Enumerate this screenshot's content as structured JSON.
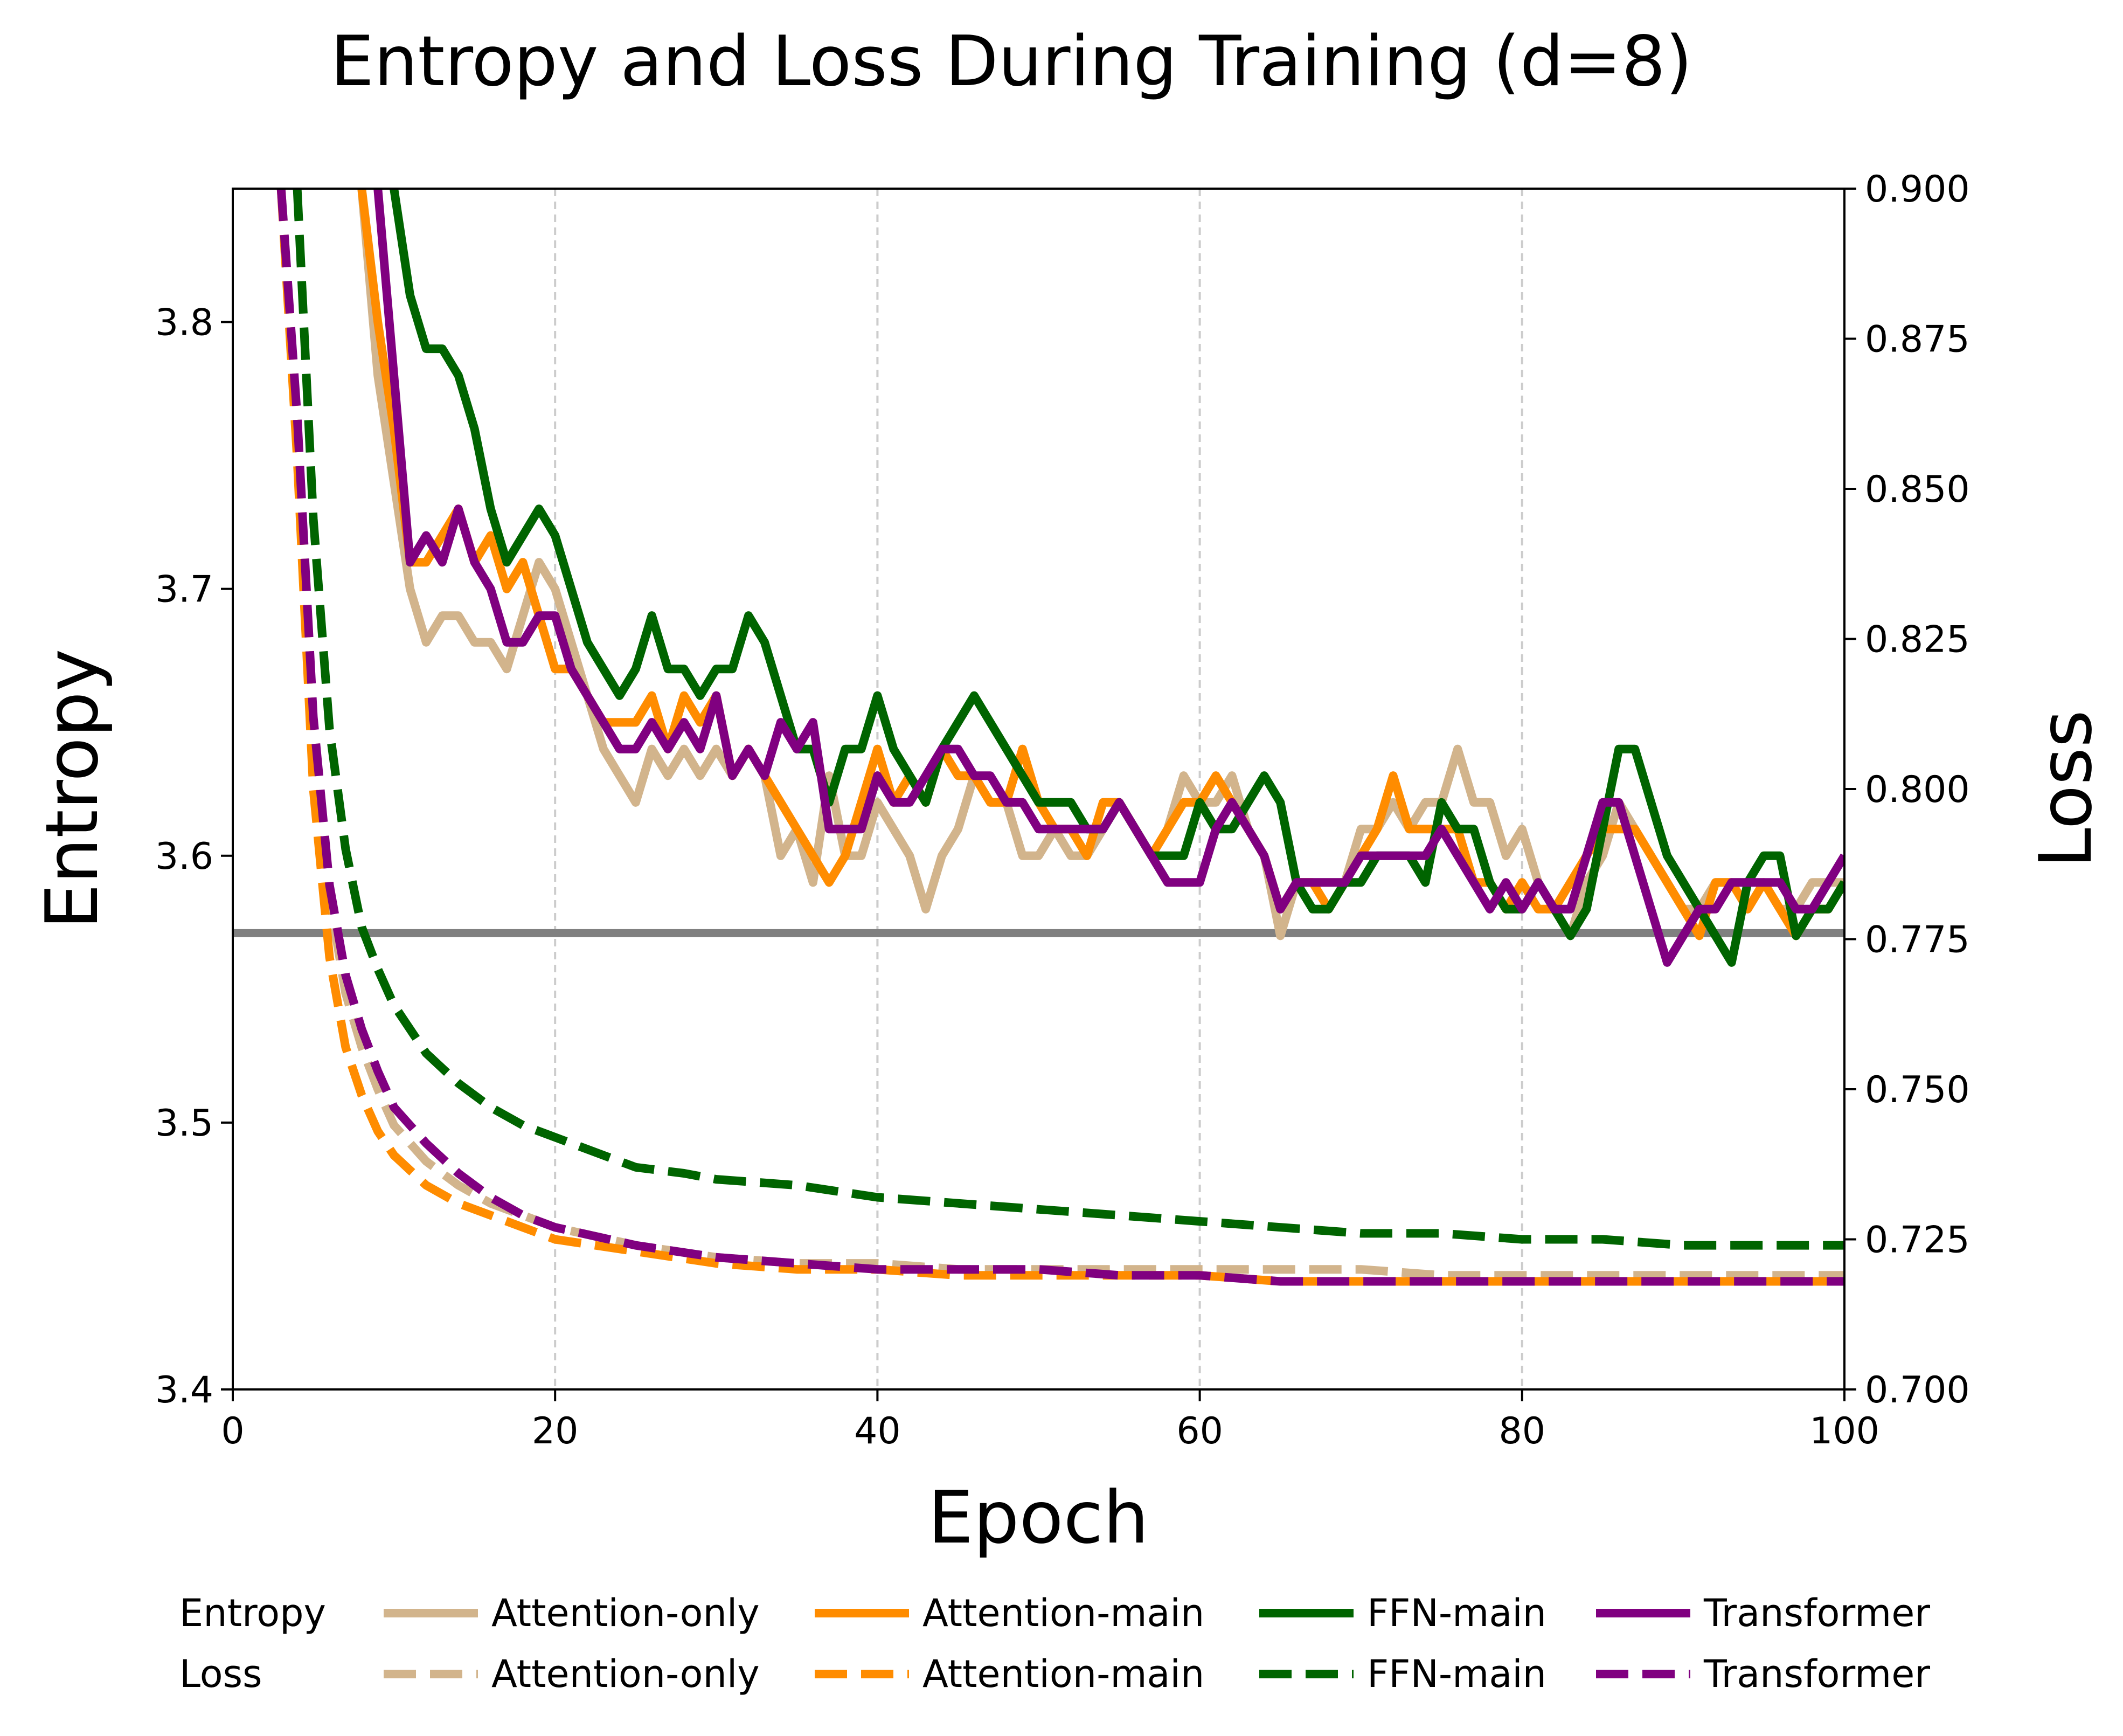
{
  "chart_data": {
    "type": "line",
    "title": "Entropy and Loss During Training (d=8)",
    "xlabel": "Epoch",
    "ylabel_left": "Entropy",
    "ylabel_right": "Loss",
    "xlim": [
      0,
      100
    ],
    "ylim_left": [
      3.4,
      3.85
    ],
    "ylim_right": [
      0.7,
      0.9
    ],
    "x_ticks": [
      0,
      20,
      40,
      60,
      80,
      100
    ],
    "x_tick_labels": [
      "0",
      "20",
      "40",
      "60",
      "80",
      "100"
    ],
    "y_left_ticks": [
      3.4,
      3.5,
      3.6,
      3.7,
      3.8
    ],
    "y_left_tick_labels": [
      "3.4",
      "3.5",
      "3.6",
      "3.7",
      "3.8"
    ],
    "y_right_ticks": [
      0.7,
      0.725,
      0.75,
      0.775,
      0.8,
      0.825,
      0.85,
      0.875,
      0.9
    ],
    "y_right_tick_labels": [
      "0.700",
      "0.725",
      "0.750",
      "0.775",
      "0.800",
      "0.825",
      "0.850",
      "0.875",
      "0.900"
    ],
    "x_grid": "vertical dashed",
    "reference_line": {
      "axis": "left",
      "value": 3.571,
      "color": "#808080"
    },
    "legend": {
      "placement": "bottom",
      "row_labels": [
        "Entropy",
        "Loss"
      ],
      "entropy_entries": [
        "Attention-only",
        "Attention-main",
        "FFN-main",
        "Transformer"
      ],
      "loss_entries": [
        "Attention-only",
        "Attention-main",
        "FFN-main",
        "Transformer"
      ]
    },
    "series": [
      {
        "name": "Attention-only",
        "metric": "Entropy",
        "axis": "left",
        "color": "#D2B48C",
        "style": "solid",
        "x": [
          8,
          9,
          10,
          11,
          12,
          13,
          14,
          15,
          16,
          17,
          18,
          19,
          20,
          21,
          22,
          23,
          24,
          25,
          26,
          27,
          28,
          29,
          30,
          31,
          32,
          33,
          34,
          35,
          36,
          37,
          38,
          39,
          40,
          41,
          42,
          43,
          44,
          45,
          46,
          47,
          48,
          49,
          50,
          51,
          52,
          53,
          54,
          55,
          56,
          57,
          58,
          59,
          60,
          61,
          62,
          63,
          64,
          65,
          66,
          67,
          68,
          69,
          70,
          71,
          72,
          73,
          74,
          75,
          76,
          77,
          78,
          79,
          80,
          81,
          82,
          83,
          84,
          85,
          86,
          87,
          88,
          89,
          90,
          91,
          92,
          93,
          94,
          95,
          96,
          97,
          98,
          99,
          100
        ],
        "y": [
          3.85,
          3.78,
          3.74,
          3.7,
          3.68,
          3.69,
          3.69,
          3.68,
          3.68,
          3.67,
          3.69,
          3.71,
          3.7,
          3.68,
          3.66,
          3.64,
          3.63,
          3.62,
          3.64,
          3.63,
          3.64,
          3.63,
          3.64,
          3.63,
          3.64,
          3.63,
          3.6,
          3.61,
          3.59,
          3.63,
          3.6,
          3.6,
          3.62,
          3.61,
          3.6,
          3.58,
          3.6,
          3.61,
          3.63,
          3.62,
          3.62,
          3.6,
          3.6,
          3.61,
          3.6,
          3.6,
          3.61,
          3.62,
          3.61,
          3.6,
          3.61,
          3.63,
          3.62,
          3.62,
          3.63,
          3.61,
          3.6,
          3.57,
          3.59,
          3.59,
          3.59,
          3.59,
          3.61,
          3.61,
          3.62,
          3.61,
          3.62,
          3.62,
          3.64,
          3.62,
          3.62,
          3.6,
          3.61,
          3.59,
          3.58,
          3.57,
          3.59,
          3.6,
          3.62,
          3.61,
          3.6,
          3.59,
          3.58,
          3.58,
          3.59,
          3.59,
          3.59,
          3.59,
          3.58,
          3.58,
          3.59,
          3.59,
          3.59
        ]
      },
      {
        "name": "Attention-main",
        "metric": "Entropy",
        "axis": "left",
        "color": "#FF8C00",
        "style": "solid",
        "x": [
          8,
          9,
          10,
          11,
          12,
          13,
          14,
          15,
          16,
          17,
          18,
          19,
          20,
          21,
          22,
          23,
          24,
          25,
          26,
          27,
          28,
          29,
          30,
          31,
          32,
          33,
          34,
          35,
          36,
          37,
          38,
          39,
          40,
          41,
          42,
          43,
          44,
          45,
          46,
          47,
          48,
          49,
          50,
          51,
          52,
          53,
          54,
          55,
          56,
          57,
          58,
          59,
          60,
          61,
          62,
          63,
          64,
          65,
          66,
          67,
          68,
          69,
          70,
          71,
          72,
          73,
          74,
          75,
          76,
          77,
          78,
          79,
          80,
          81,
          82,
          83,
          84,
          85,
          86,
          87,
          88,
          89,
          90,
          91,
          92,
          93,
          94,
          95,
          96,
          97,
          98,
          99,
          100
        ],
        "y": [
          3.85,
          3.8,
          3.76,
          3.71,
          3.71,
          3.72,
          3.73,
          3.71,
          3.72,
          3.7,
          3.71,
          3.69,
          3.67,
          3.67,
          3.66,
          3.65,
          3.65,
          3.65,
          3.66,
          3.64,
          3.66,
          3.65,
          3.66,
          3.63,
          3.64,
          3.63,
          3.62,
          3.61,
          3.6,
          3.59,
          3.6,
          3.62,
          3.64,
          3.62,
          3.63,
          3.62,
          3.64,
          3.63,
          3.63,
          3.62,
          3.62,
          3.64,
          3.62,
          3.61,
          3.61,
          3.6,
          3.62,
          3.62,
          3.61,
          3.6,
          3.61,
          3.62,
          3.62,
          3.63,
          3.62,
          3.61,
          3.6,
          3.58,
          3.59,
          3.59,
          3.58,
          3.59,
          3.6,
          3.61,
          3.63,
          3.61,
          3.61,
          3.61,
          3.61,
          3.59,
          3.59,
          3.58,
          3.59,
          3.58,
          3.58,
          3.59,
          3.6,
          3.61,
          3.61,
          3.61,
          3.6,
          3.59,
          3.58,
          3.57,
          3.59,
          3.59,
          3.58,
          3.59,
          3.58,
          3.57,
          3.58,
          3.58,
          3.59
        ]
      },
      {
        "name": "FFN-main",
        "metric": "Entropy",
        "axis": "left",
        "color": "#006400",
        "style": "solid",
        "x": [
          10,
          11,
          12,
          13,
          14,
          15,
          16,
          17,
          18,
          19,
          20,
          21,
          22,
          23,
          24,
          25,
          26,
          27,
          28,
          29,
          30,
          31,
          32,
          33,
          34,
          35,
          36,
          37,
          38,
          39,
          40,
          41,
          42,
          43,
          44,
          45,
          46,
          47,
          48,
          49,
          50,
          51,
          52,
          53,
          54,
          55,
          56,
          57,
          58,
          59,
          60,
          61,
          62,
          63,
          64,
          65,
          66,
          67,
          68,
          69,
          70,
          71,
          72,
          73,
          74,
          75,
          76,
          77,
          78,
          79,
          80,
          81,
          82,
          83,
          84,
          85,
          86,
          87,
          88,
          89,
          90,
          91,
          92,
          93,
          94,
          95,
          96,
          97,
          98,
          99,
          100
        ],
        "y": [
          3.85,
          3.81,
          3.79,
          3.79,
          3.78,
          3.76,
          3.73,
          3.71,
          3.72,
          3.73,
          3.72,
          3.7,
          3.68,
          3.67,
          3.66,
          3.67,
          3.69,
          3.67,
          3.67,
          3.66,
          3.67,
          3.67,
          3.69,
          3.68,
          3.66,
          3.64,
          3.64,
          3.62,
          3.64,
          3.64,
          3.66,
          3.64,
          3.63,
          3.62,
          3.64,
          3.65,
          3.66,
          3.65,
          3.64,
          3.63,
          3.62,
          3.62,
          3.62,
          3.61,
          3.61,
          3.62,
          3.61,
          3.6,
          3.6,
          3.6,
          3.62,
          3.61,
          3.61,
          3.62,
          3.63,
          3.62,
          3.59,
          3.58,
          3.58,
          3.59,
          3.59,
          3.6,
          3.6,
          3.6,
          3.59,
          3.62,
          3.61,
          3.61,
          3.59,
          3.58,
          3.58,
          3.59,
          3.58,
          3.57,
          3.58,
          3.61,
          3.64,
          3.64,
          3.62,
          3.6,
          3.59,
          3.58,
          3.57,
          3.56,
          3.59,
          3.6,
          3.6,
          3.57,
          3.58,
          3.58,
          3.59
        ]
      },
      {
        "name": "Transformer",
        "metric": "Entropy",
        "axis": "left",
        "color": "#800080",
        "style": "solid",
        "x": [
          9,
          10,
          11,
          12,
          13,
          14,
          15,
          16,
          17,
          18,
          19,
          20,
          21,
          22,
          23,
          24,
          25,
          26,
          27,
          28,
          29,
          30,
          31,
          32,
          33,
          34,
          35,
          36,
          37,
          38,
          39,
          40,
          41,
          42,
          43,
          44,
          45,
          46,
          47,
          48,
          49,
          50,
          51,
          52,
          53,
          54,
          55,
          56,
          57,
          58,
          59,
          60,
          61,
          62,
          63,
          64,
          65,
          66,
          67,
          68,
          69,
          70,
          71,
          72,
          73,
          74,
          75,
          76,
          77,
          78,
          79,
          80,
          81,
          82,
          83,
          84,
          85,
          86,
          87,
          88,
          89,
          90,
          91,
          92,
          93,
          94,
          95,
          96,
          97,
          98,
          99,
          100
        ],
        "y": [
          3.85,
          3.78,
          3.71,
          3.72,
          3.71,
          3.73,
          3.71,
          3.7,
          3.68,
          3.68,
          3.69,
          3.69,
          3.67,
          3.66,
          3.65,
          3.64,
          3.64,
          3.65,
          3.64,
          3.65,
          3.64,
          3.66,
          3.63,
          3.64,
          3.63,
          3.65,
          3.64,
          3.65,
          3.61,
          3.61,
          3.61,
          3.63,
          3.62,
          3.62,
          3.63,
          3.64,
          3.64,
          3.63,
          3.63,
          3.62,
          3.62,
          3.61,
          3.61,
          3.61,
          3.61,
          3.61,
          3.62,
          3.61,
          3.6,
          3.59,
          3.59,
          3.59,
          3.61,
          3.62,
          3.61,
          3.6,
          3.58,
          3.59,
          3.59,
          3.59,
          3.59,
          3.6,
          3.6,
          3.6,
          3.6,
          3.6,
          3.61,
          3.6,
          3.59,
          3.58,
          3.59,
          3.58,
          3.59,
          3.58,
          3.58,
          3.6,
          3.62,
          3.62,
          3.6,
          3.58,
          3.56,
          3.57,
          3.58,
          3.58,
          3.59,
          3.59,
          3.59,
          3.59,
          3.58,
          3.58,
          3.59,
          3.6
        ]
      },
      {
        "name": "Attention-only",
        "metric": "Loss",
        "axis": "right",
        "color": "#D2B48C",
        "style": "dashed",
        "x": [
          3,
          4,
          5,
          6,
          7,
          8,
          9,
          10,
          12,
          14,
          16,
          18,
          20,
          25,
          30,
          35,
          40,
          45,
          50,
          55,
          60,
          65,
          70,
          75,
          80,
          85,
          90,
          95,
          100
        ],
        "y": [
          0.9,
          0.86,
          0.81,
          0.782,
          0.766,
          0.757,
          0.75,
          0.744,
          0.738,
          0.734,
          0.731,
          0.729,
          0.727,
          0.724,
          0.722,
          0.721,
          0.721,
          0.72,
          0.72,
          0.72,
          0.72,
          0.72,
          0.72,
          0.719,
          0.719,
          0.719,
          0.719,
          0.719,
          0.719
        ]
      },
      {
        "name": "Attention-main",
        "metric": "Loss",
        "axis": "right",
        "color": "#FF8C00",
        "style": "dashed",
        "x": [
          3,
          4,
          5,
          6,
          7,
          8,
          9,
          10,
          12,
          14,
          16,
          18,
          20,
          25,
          30,
          35,
          40,
          45,
          50,
          55,
          60,
          65,
          70,
          75,
          80,
          85,
          90,
          95,
          100
        ],
        "y": [
          0.9,
          0.855,
          0.8,
          0.772,
          0.757,
          0.749,
          0.743,
          0.739,
          0.734,
          0.731,
          0.729,
          0.727,
          0.725,
          0.723,
          0.721,
          0.72,
          0.72,
          0.719,
          0.719,
          0.719,
          0.719,
          0.718,
          0.718,
          0.718,
          0.718,
          0.718,
          0.718,
          0.718,
          0.718
        ]
      },
      {
        "name": "FFN-main",
        "metric": "Loss",
        "axis": "right",
        "color": "#006400",
        "style": "dashed",
        "x": [
          4,
          5,
          6,
          7,
          8,
          9,
          10,
          12,
          14,
          16,
          18,
          20,
          22,
          25,
          28,
          30,
          35,
          40,
          45,
          50,
          55,
          60,
          65,
          70,
          75,
          80,
          85,
          90,
          95,
          100
        ],
        "y": [
          0.9,
          0.845,
          0.81,
          0.79,
          0.777,
          0.77,
          0.764,
          0.756,
          0.751,
          0.747,
          0.744,
          0.742,
          0.74,
          0.737,
          0.736,
          0.735,
          0.734,
          0.732,
          0.731,
          0.73,
          0.729,
          0.728,
          0.727,
          0.726,
          0.726,
          0.725,
          0.725,
          0.724,
          0.724,
          0.724
        ]
      },
      {
        "name": "Transformer",
        "metric": "Loss",
        "axis": "right",
        "color": "#800080",
        "style": "dashed",
        "x": [
          3,
          4,
          5,
          6,
          7,
          8,
          9,
          10,
          12,
          14,
          16,
          18,
          20,
          25,
          30,
          35,
          40,
          45,
          50,
          55,
          60,
          65,
          70,
          75,
          80,
          85,
          90,
          95,
          100
        ],
        "y": [
          0.9,
          0.862,
          0.812,
          0.784,
          0.769,
          0.76,
          0.753,
          0.747,
          0.741,
          0.736,
          0.732,
          0.729,
          0.727,
          0.724,
          0.722,
          0.721,
          0.72,
          0.72,
          0.72,
          0.719,
          0.719,
          0.718,
          0.718,
          0.718,
          0.718,
          0.718,
          0.718,
          0.718,
          0.718
        ]
      }
    ]
  }
}
